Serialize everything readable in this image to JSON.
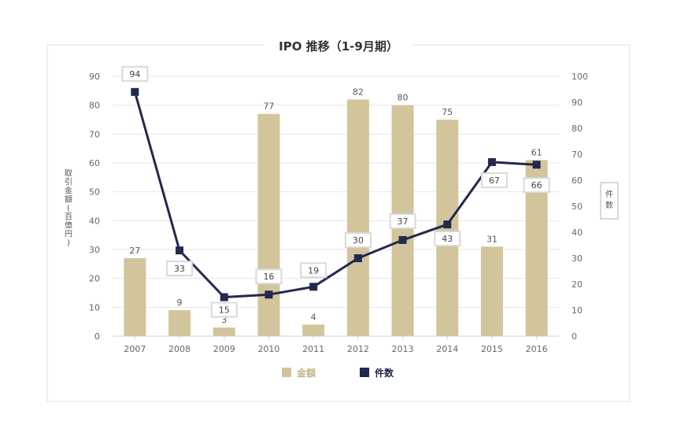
{
  "chart_data": {
    "type": "bar",
    "title": "IPO 推移（1-9月期）",
    "categories": [
      "2007",
      "2008",
      "2009",
      "2010",
      "2011",
      "2012",
      "2013",
      "2014",
      "2015",
      "2016"
    ],
    "series": [
      {
        "name": "金額",
        "type": "bar",
        "axis": "left",
        "values": [
          27,
          9,
          3,
          77,
          4,
          82,
          80,
          75,
          31,
          61
        ],
        "color": "#d2c59c"
      },
      {
        "name": "件数",
        "type": "line",
        "axis": "right",
        "values": [
          94,
          33,
          15,
          16,
          19,
          30,
          37,
          43,
          67,
          66
        ],
        "color": "#23284e"
      }
    ],
    "y_left": {
      "label": "取引金額(百億円)",
      "min": 0,
      "max": 90,
      "step": 10
    },
    "y_right": {
      "label": "件数",
      "min": 0,
      "max": 100,
      "step": 10
    },
    "grid": true,
    "legend": "bottom-center"
  }
}
